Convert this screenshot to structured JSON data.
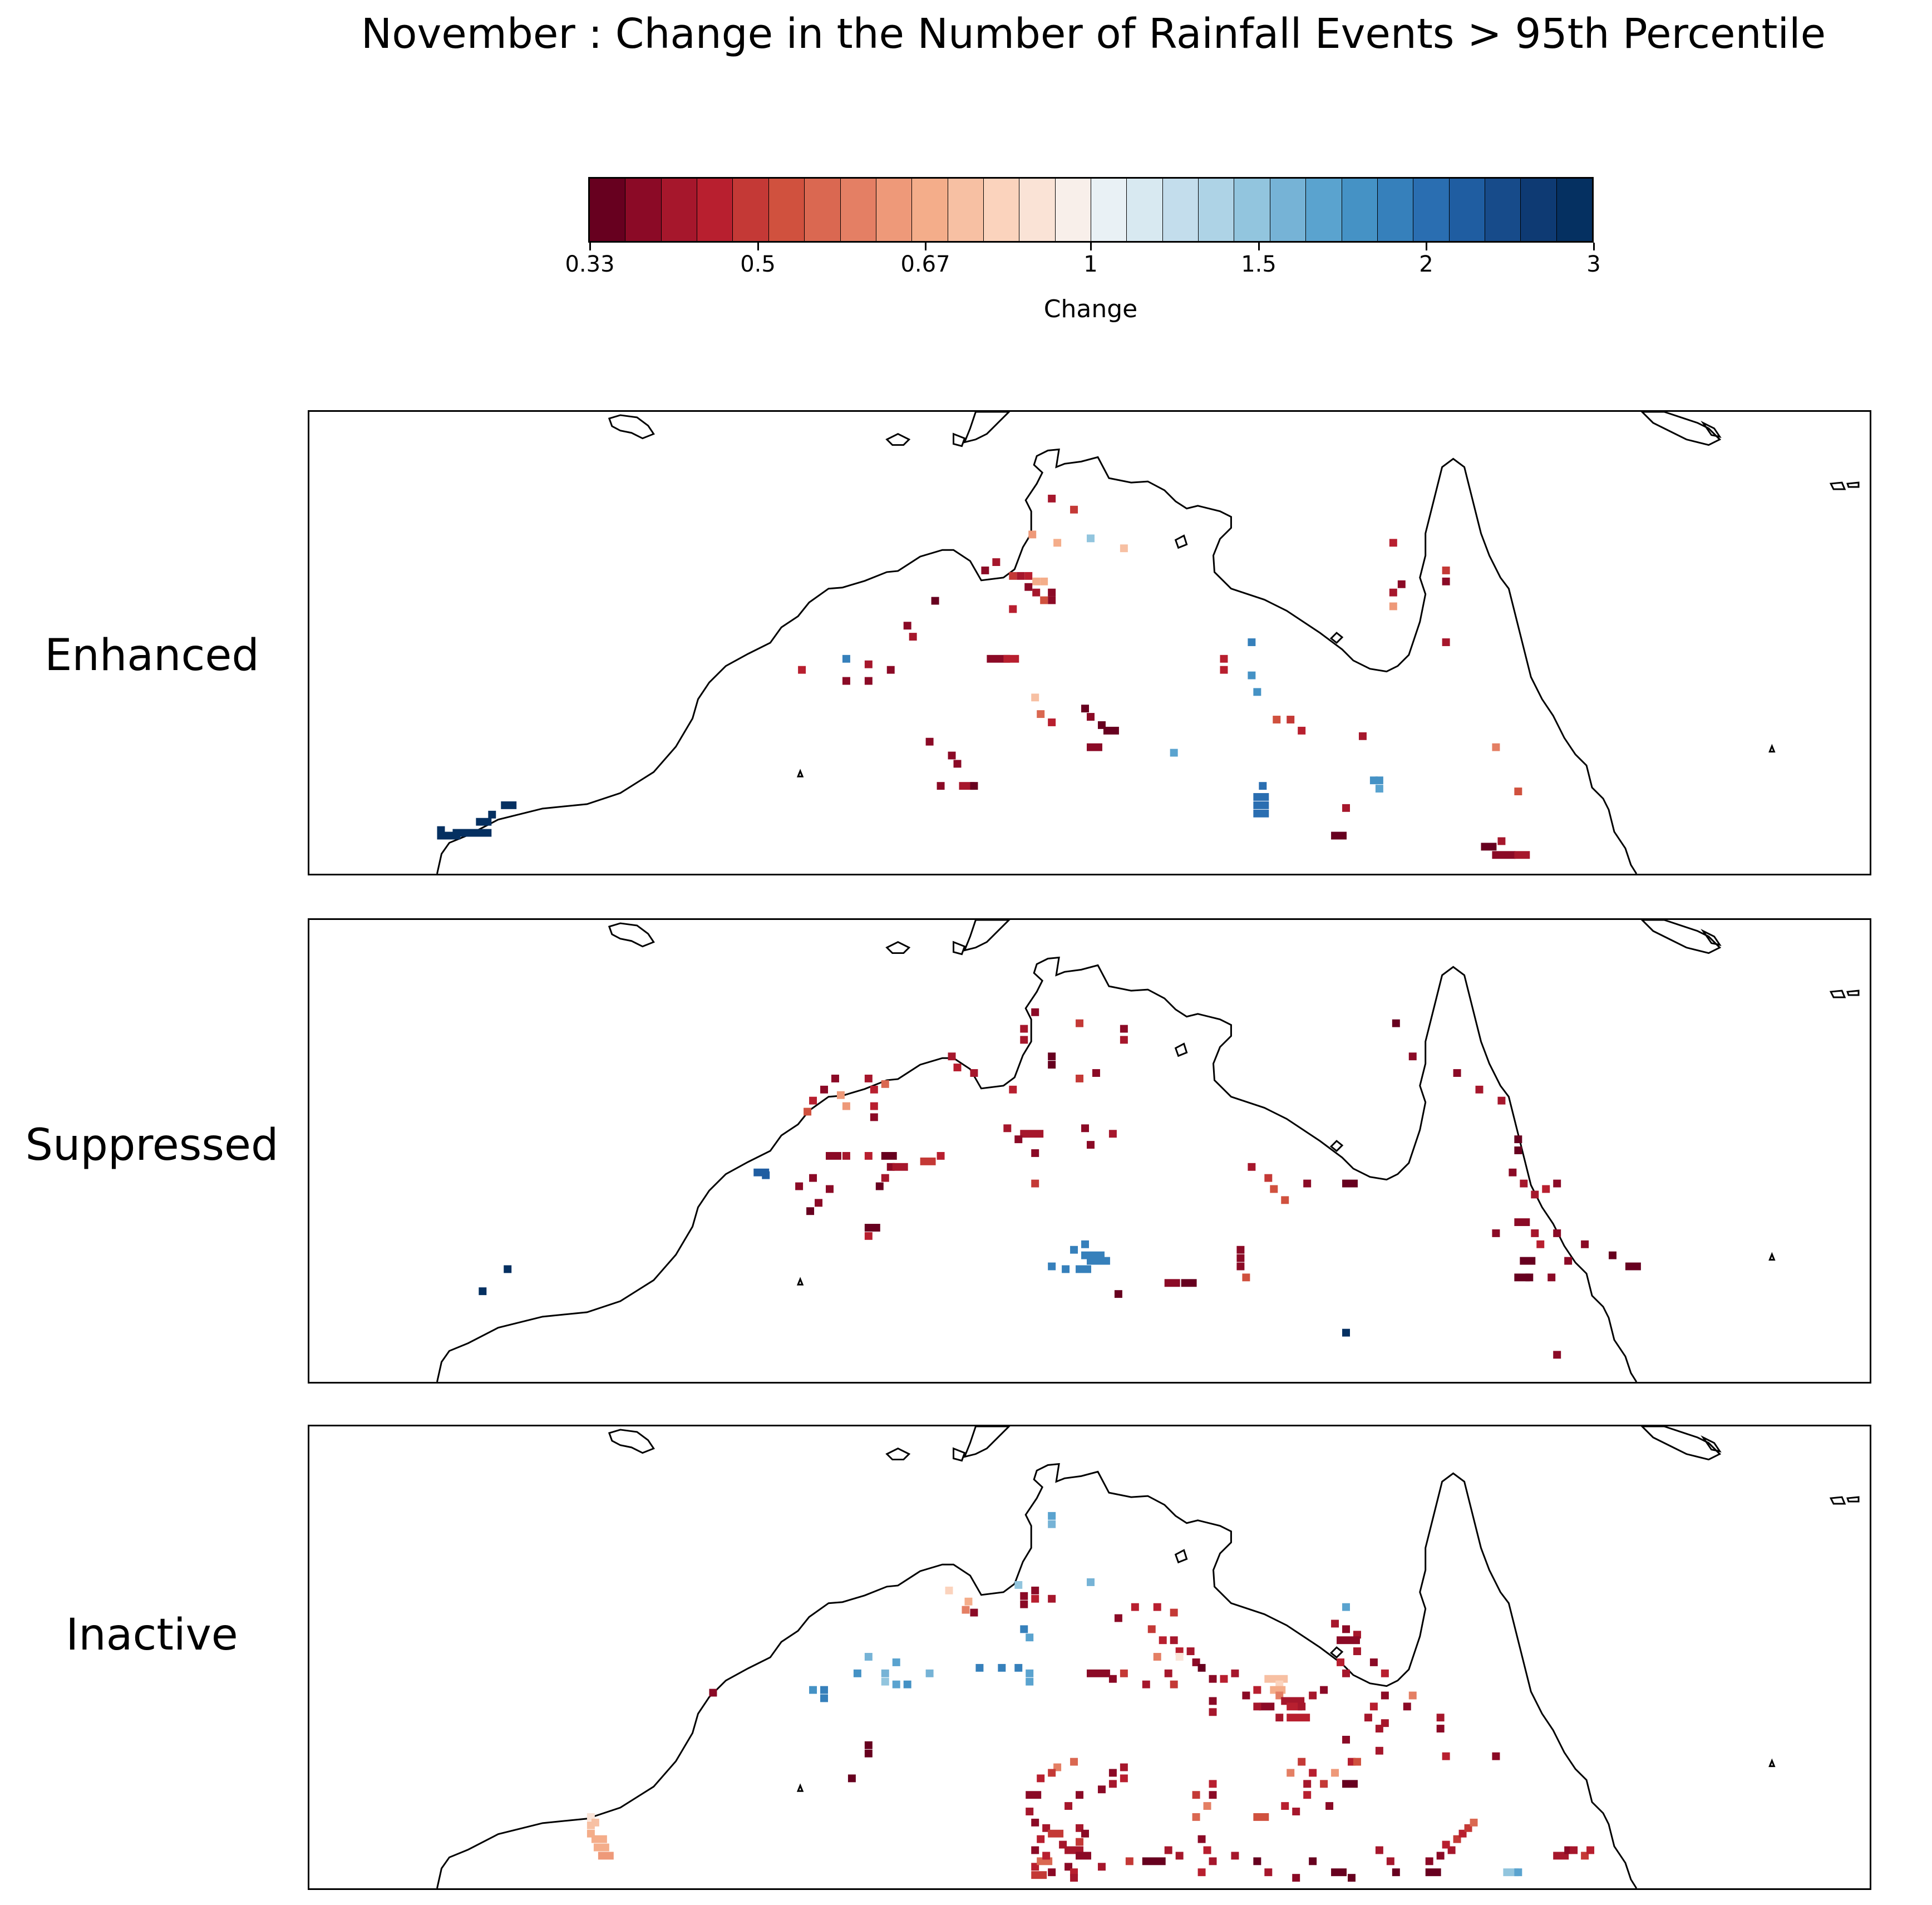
{
  "title": "November : Change in the Number of Rainfall Events > 95th Percentile",
  "colorbar": {
    "label": "Change",
    "ticks": [
      "0.33",
      "0.5",
      "0.67",
      "1",
      "1.5",
      "2",
      "3"
    ],
    "colors": [
      "#67001f",
      "#8b0a26",
      "#a6172c",
      "#b81f2f",
      "#c43936",
      "#d0513e",
      "#da6851",
      "#e47f64",
      "#ee9979",
      "#f4ad8a",
      "#f7c0a3",
      "#fbd3bd",
      "#fae3d6",
      "#f8efea",
      "#e9f1f5",
      "#d8e9f1",
      "#c3ddec",
      "#aed3e6",
      "#92c5de",
      "#76b3d6",
      "#5aa3cf",
      "#4592c5",
      "#3680bb",
      "#2a6eb1",
      "#1f5da1",
      "#174b8a",
      "#0e3a73",
      "#053061"
    ]
  },
  "panels": [
    {
      "label": "Enhanced"
    },
    {
      "label": "Suppressed"
    },
    {
      "label": "Inactive"
    }
  ]
}
